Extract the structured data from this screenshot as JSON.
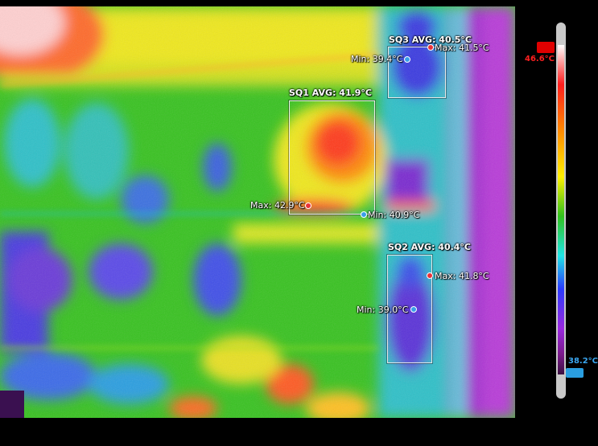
{
  "regions": [
    {
      "title": "SQ3 AVG: 40.5°C",
      "max": "Max: 41.5°C",
      "min": "Min: 39.4°C"
    },
    {
      "title": "SQ1 AVG: 41.9°C",
      "max": "Max: 42.9°C",
      "min": "Min: 40.9°C"
    },
    {
      "title": "SQ2 AVG: 40.4°C",
      "max": "Max: 41.8°C",
      "min": "Min: 39.0°C"
    }
  ],
  "scale": {
    "max": "46.6°C",
    "min": "38.2°C"
  },
  "palette": [
    "#ffffff",
    "#ff1e1e",
    "#ff8a00",
    "#fff000",
    "#31c21d",
    "#1fe6e6",
    "#2a3bff",
    "#9a28e0",
    "#7a1a8a"
  ]
}
